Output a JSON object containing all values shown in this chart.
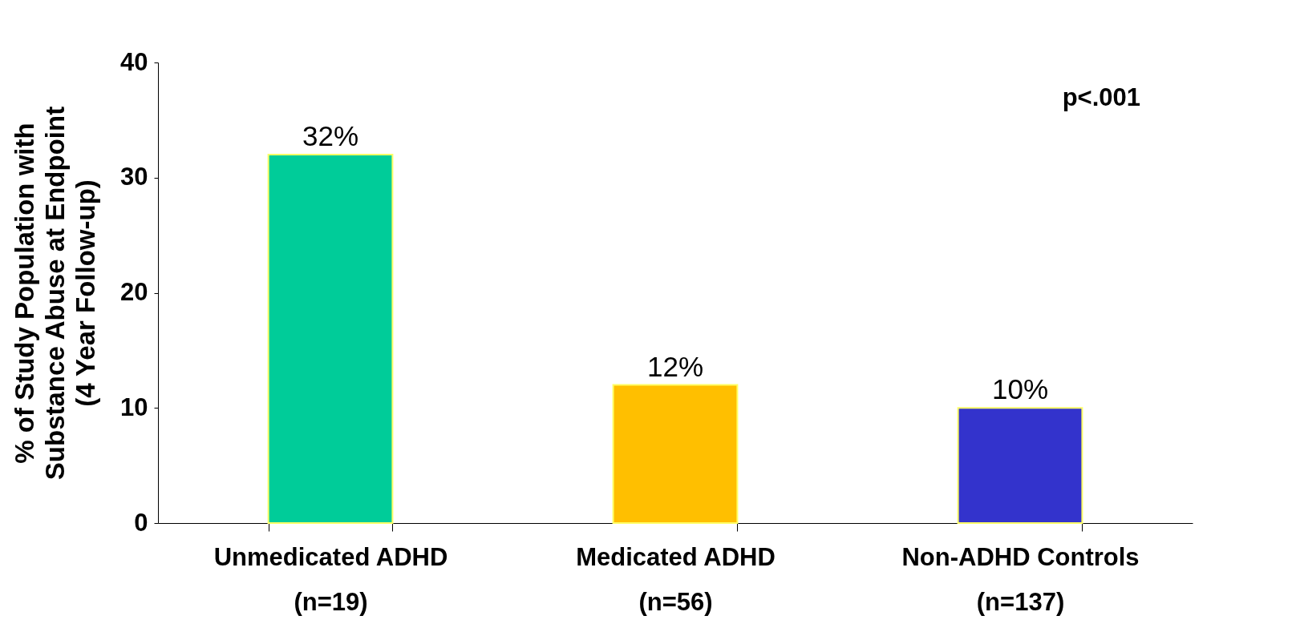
{
  "chart_data": {
    "type": "bar",
    "ylabel": "% of Study Population with\nSubstance Abuse at Endpoint\n(4 Year Follow-up)",
    "categories": [
      "Unmedicated ADHD\n(n=19)",
      "Medicated ADHD\n(n=56)",
      "Non-ADHD Controls\n(n=137)"
    ],
    "values": [
      32,
      12,
      10
    ],
    "colors": [
      "#00cc99",
      "#ffbf00",
      "#3333cc"
    ],
    "value_labels": [
      "32%",
      "12%",
      "10%"
    ],
    "ylim": [
      0,
      40
    ],
    "yticks": [
      0,
      10,
      20,
      30,
      40
    ],
    "grid": false,
    "annotations": [
      "p<.001"
    ]
  }
}
